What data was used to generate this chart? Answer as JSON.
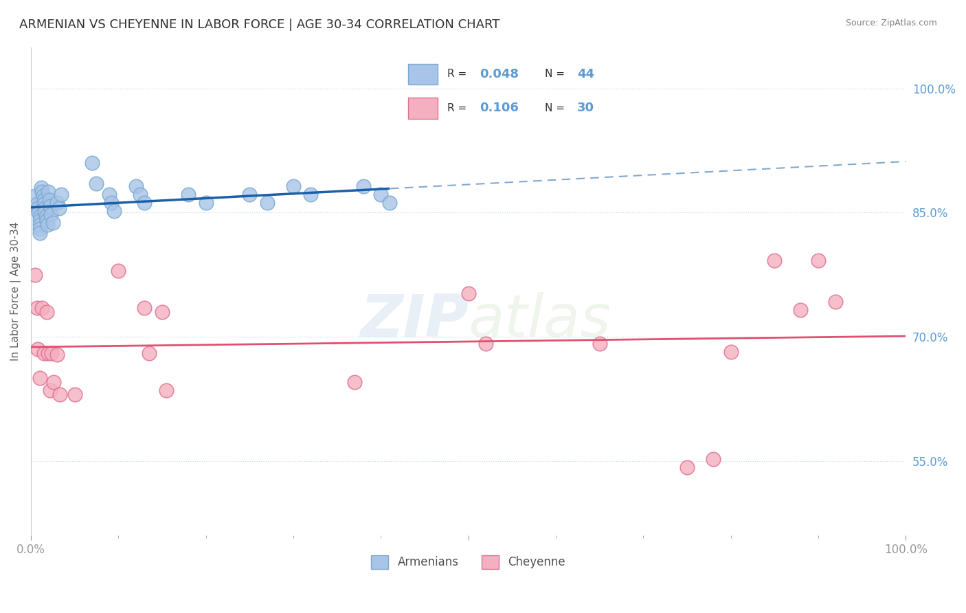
{
  "title": "ARMENIAN VS CHEYENNE IN LABOR FORCE | AGE 30-34 CORRELATION CHART",
  "source": "Source: ZipAtlas.com",
  "ylabel": "In Labor Force | Age 30-34",
  "xlim": [
    0,
    1.0
  ],
  "ylim": [
    0.46,
    1.05
  ],
  "ytick_positions": [
    0.55,
    0.7,
    0.85,
    1.0
  ],
  "ytick_labels": [
    "55.0%",
    "70.0%",
    "85.0%",
    "100.0%"
  ],
  "watermark_zip": "ZIP",
  "watermark_atlas": "atlas",
  "armenian_x": [
    0.005,
    0.007,
    0.008,
    0.009,
    0.01,
    0.01,
    0.01,
    0.01,
    0.01,
    0.012,
    0.013,
    0.014,
    0.015,
    0.015,
    0.016,
    0.016,
    0.017,
    0.018,
    0.019,
    0.02,
    0.021,
    0.022,
    0.023,
    0.025,
    0.03,
    0.032,
    0.035,
    0.07,
    0.075,
    0.09,
    0.092,
    0.095,
    0.12,
    0.125,
    0.13,
    0.18,
    0.2,
    0.25,
    0.27,
    0.3,
    0.32,
    0.38,
    0.4,
    0.41
  ],
  "armenian_y": [
    0.87,
    0.86,
    0.855,
    0.85,
    0.845,
    0.84,
    0.835,
    0.83,
    0.825,
    0.88,
    0.875,
    0.87,
    0.865,
    0.86,
    0.855,
    0.85,
    0.845,
    0.84,
    0.835,
    0.875,
    0.865,
    0.858,
    0.848,
    0.838,
    0.862,
    0.855,
    0.872,
    0.91,
    0.885,
    0.872,
    0.862,
    0.852,
    0.882,
    0.872,
    0.862,
    0.872,
    0.862,
    0.872,
    0.862,
    0.882,
    0.872,
    0.882,
    0.872,
    0.862
  ],
  "cheyenne_x": [
    0.005,
    0.007,
    0.008,
    0.01,
    0.013,
    0.015,
    0.018,
    0.02,
    0.022,
    0.024,
    0.026,
    0.03,
    0.033,
    0.05,
    0.1,
    0.13,
    0.135,
    0.15,
    0.155,
    0.37,
    0.5,
    0.52,
    0.65,
    0.75,
    0.78,
    0.8,
    0.85,
    0.88,
    0.9,
    0.92
  ],
  "cheyenne_y": [
    0.775,
    0.735,
    0.685,
    0.65,
    0.735,
    0.68,
    0.73,
    0.68,
    0.635,
    0.68,
    0.645,
    0.678,
    0.63,
    0.63,
    0.78,
    0.735,
    0.68,
    0.73,
    0.635,
    0.645,
    0.752,
    0.692,
    0.692,
    0.542,
    0.552,
    0.682,
    0.792,
    0.732,
    0.792,
    0.742
  ],
  "blue_line_color": "#1a5fa8",
  "pink_line_color": "#e05070",
  "grid_color": "#c8d8e8",
  "background_color": "#ffffff",
  "title_color": "#303030",
  "axis_label_color": "#606060",
  "tick_label_color": "#5b9bd5",
  "legend_text_color": "#5b9bd5",
  "source_color": "#808080",
  "scatter_blue_face": "#a8c4e8",
  "scatter_blue_edge": "#7aaad0",
  "scatter_pink_face": "#f4b0c0",
  "scatter_pink_edge": "#e07090"
}
